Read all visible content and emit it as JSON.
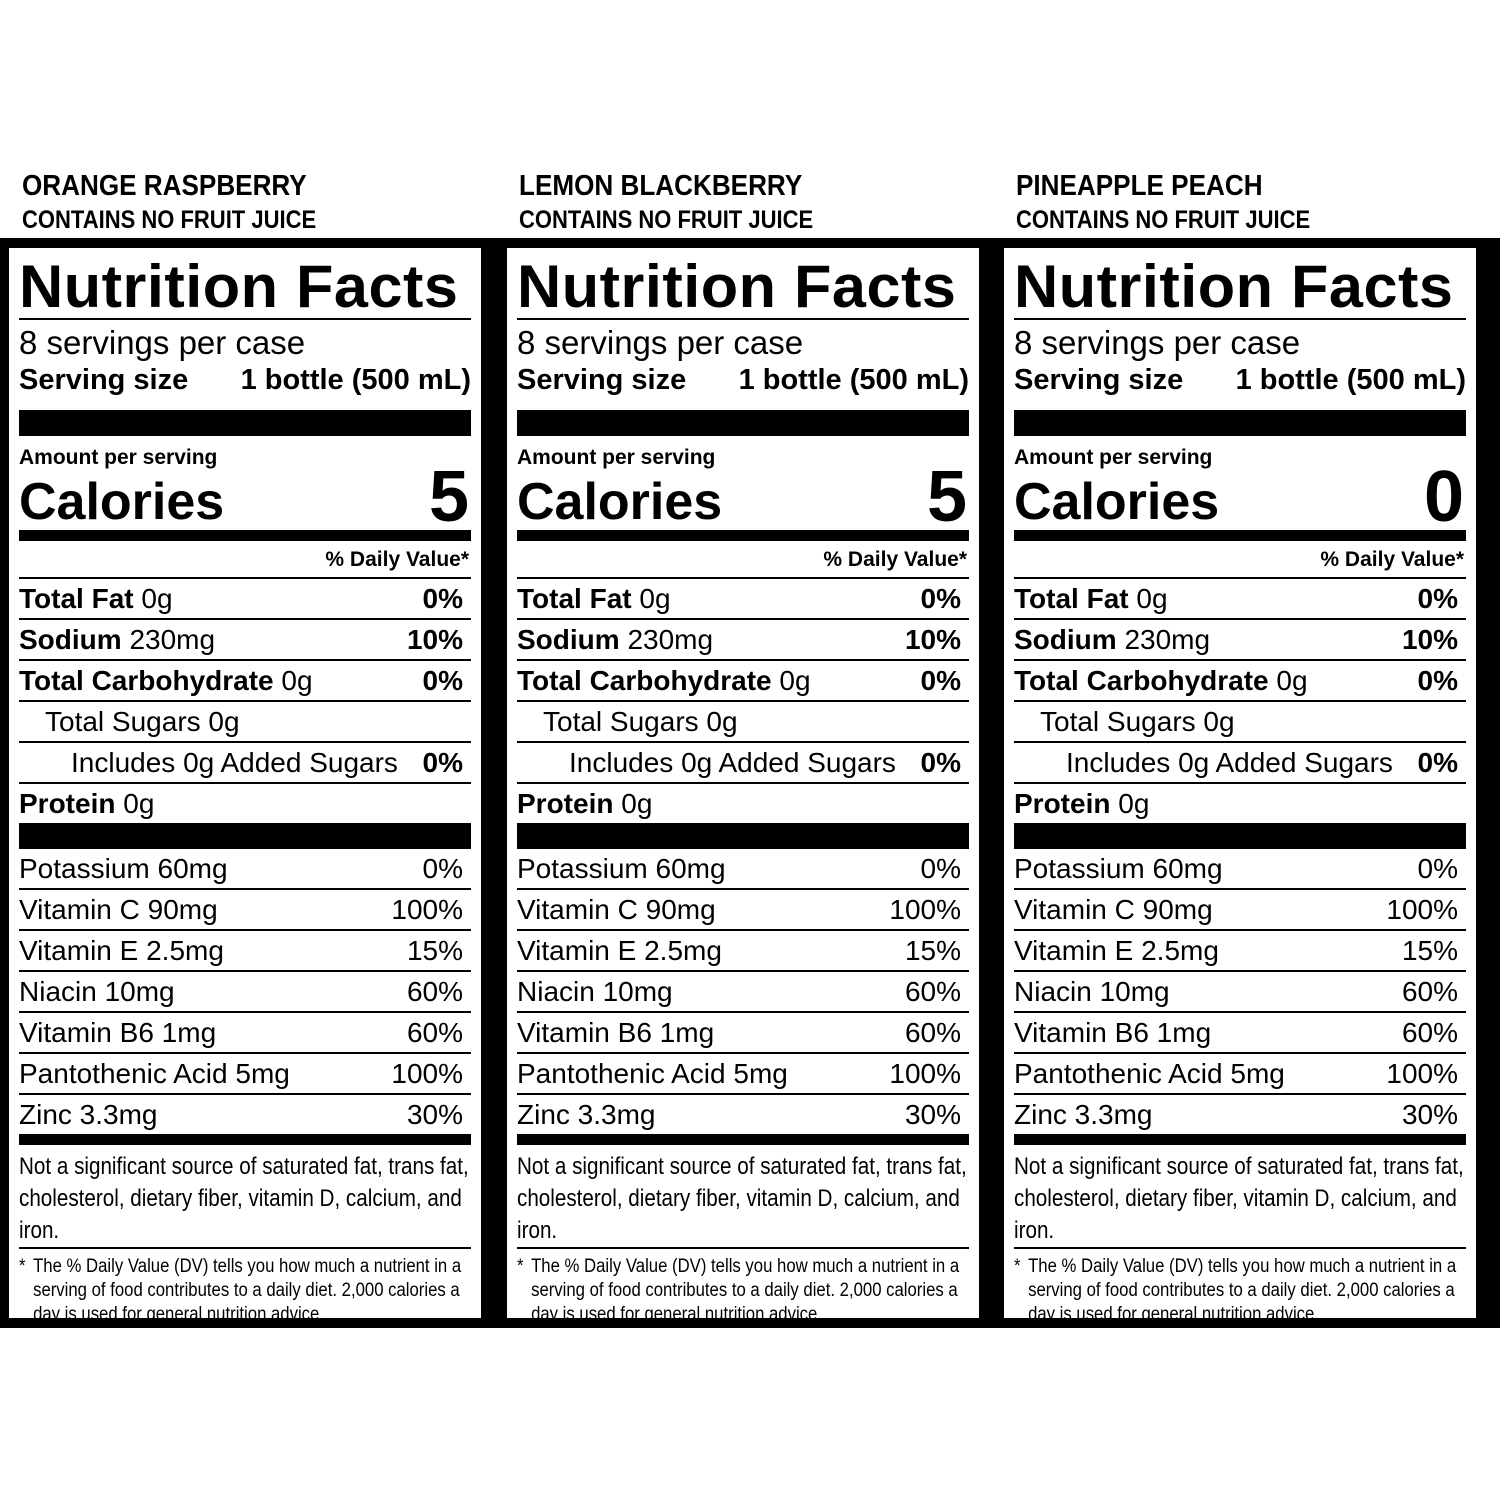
{
  "columns": [
    {
      "flavor": "ORANGE RASPBERRY",
      "note": "CONTAINS NO FRUIT JUICE",
      "title": "Nutrition Facts",
      "servings": "8 servings per case",
      "serving_size_label": "Serving size",
      "serving_size_value": "1 bottle (500 mL)",
      "amount_label": "Amount per serving",
      "calories_label": "Calories",
      "calories_value": "5",
      "dv_header": "% Daily Value*",
      "total_fat": {
        "label": "Total Fat",
        "amount": "0g",
        "pct": "0%"
      },
      "sodium": {
        "label": "Sodium",
        "amount": "230mg",
        "pct": "10%"
      },
      "total_carb": {
        "label": "Total Carbohydrate",
        "amount": "0g",
        "pct": "0%"
      },
      "total_sugars": "Total Sugars 0g",
      "added_sugars": {
        "label": "Includes 0g Added Sugars",
        "pct": "0%"
      },
      "protein": {
        "label": "Protein",
        "amount": "0g"
      },
      "vitamins": [
        {
          "name": "Potassium 60mg",
          "pct": "0%"
        },
        {
          "name": "Vitamin C 90mg",
          "pct": "100%"
        },
        {
          "name": "Vitamin E 2.5mg",
          "pct": "15%"
        },
        {
          "name": "Niacin 10mg",
          "pct": "60%"
        },
        {
          "name": "Vitamin B6 1mg",
          "pct": "60%"
        },
        {
          "name": "Pantothenic Acid 5mg",
          "pct": "100%"
        },
        {
          "name": "Zinc 3.3mg",
          "pct": "30%"
        }
      ],
      "footnote_sources": "Not a significant source of saturated fat, trans fat, cholesterol, dietary fiber, vitamin D, calcium, and iron.",
      "footnote_dv_star": "*",
      "footnote_dv": "The % Daily Value (DV) tells you how much a nutrient in a serving of food contributes to a daily diet. 2,000 calories a day is used for general nutrition advice."
    },
    {
      "flavor": "LEMON BLACKBERRY",
      "note": "CONTAINS NO FRUIT JUICE",
      "title": "Nutrition Facts",
      "servings": "8 servings per case",
      "serving_size_label": "Serving size",
      "serving_size_value": "1 bottle (500 mL)",
      "amount_label": "Amount per serving",
      "calories_label": "Calories",
      "calories_value": "5",
      "dv_header": "% Daily Value*",
      "total_fat": {
        "label": "Total Fat",
        "amount": "0g",
        "pct": "0%"
      },
      "sodium": {
        "label": "Sodium",
        "amount": "230mg",
        "pct": "10%"
      },
      "total_carb": {
        "label": "Total Carbohydrate",
        "amount": "0g",
        "pct": "0%"
      },
      "total_sugars": "Total Sugars 0g",
      "added_sugars": {
        "label": "Includes 0g Added Sugars",
        "pct": "0%"
      },
      "protein": {
        "label": "Protein",
        "amount": "0g"
      },
      "vitamins": [
        {
          "name": "Potassium 60mg",
          "pct": "0%"
        },
        {
          "name": "Vitamin C 90mg",
          "pct": "100%"
        },
        {
          "name": "Vitamin E 2.5mg",
          "pct": "15%"
        },
        {
          "name": "Niacin 10mg",
          "pct": "60%"
        },
        {
          "name": "Vitamin B6 1mg",
          "pct": "60%"
        },
        {
          "name": "Pantothenic Acid 5mg",
          "pct": "100%"
        },
        {
          "name": "Zinc 3.3mg",
          "pct": "30%"
        }
      ],
      "footnote_sources": "Not a significant source of saturated fat, trans fat, cholesterol, dietary fiber, vitamin D, calcium, and iron.",
      "footnote_dv_star": "*",
      "footnote_dv": "The % Daily Value (DV) tells you how much a nutrient in a serving of food contributes to a daily diet. 2,000 calories a day is used for general nutrition advice."
    },
    {
      "flavor": "PINEAPPLE PEACH",
      "note": "CONTAINS NO FRUIT JUICE",
      "title": "Nutrition Facts",
      "servings": "8 servings per case",
      "serving_size_label": "Serving size",
      "serving_size_value": "1 bottle (500 mL)",
      "amount_label": "Amount per serving",
      "calories_label": "Calories",
      "calories_value": "0",
      "dv_header": "% Daily Value*",
      "total_fat": {
        "label": "Total Fat",
        "amount": "0g",
        "pct": "0%"
      },
      "sodium": {
        "label": "Sodium",
        "amount": "230mg",
        "pct": "10%"
      },
      "total_carb": {
        "label": "Total Carbohydrate",
        "amount": "0g",
        "pct": "0%"
      },
      "total_sugars": "Total Sugars 0g",
      "added_sugars": {
        "label": "Includes 0g Added Sugars",
        "pct": "0%"
      },
      "protein": {
        "label": "Protein",
        "amount": "0g"
      },
      "vitamins": [
        {
          "name": "Potassium 60mg",
          "pct": "0%"
        },
        {
          "name": "Vitamin C 90mg",
          "pct": "100%"
        },
        {
          "name": "Vitamin E 2.5mg",
          "pct": "15%"
        },
        {
          "name": "Niacin 10mg",
          "pct": "60%"
        },
        {
          "name": "Vitamin B6 1mg",
          "pct": "60%"
        },
        {
          "name": "Pantothenic Acid 5mg",
          "pct": "100%"
        },
        {
          "name": "Zinc 3.3mg",
          "pct": "30%"
        }
      ],
      "footnote_sources": "Not a significant source of saturated fat, trans fat, cholesterol, dietary fiber, vitamin D, calcium, and iron.",
      "footnote_dv_star": "*",
      "footnote_dv": "The % Daily Value (DV) tells you how much a nutrient in a serving of food contributes to a daily diet. 2,000 calories a day is used for general nutrition advice."
    }
  ]
}
